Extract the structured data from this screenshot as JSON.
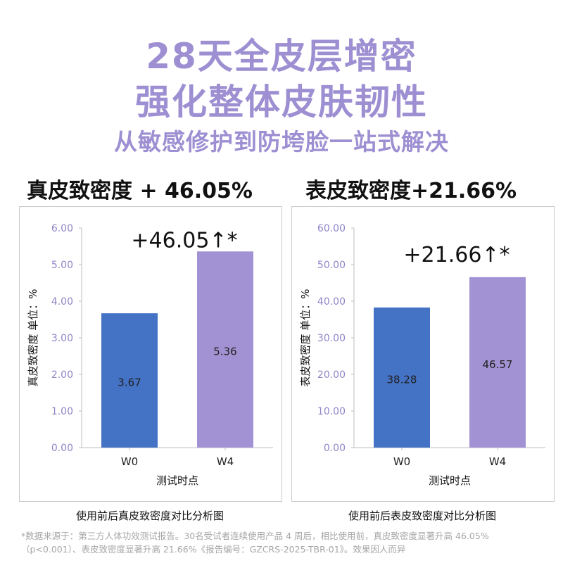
{
  "headline": {
    "line1": "28天全皮层增密",
    "line2": "强化整体皮肤韧性",
    "line3": "从敏感修护到防垮脸一站式解决"
  },
  "colors": {
    "headline": "#9d8fd2",
    "bar_w0": "#4472c4",
    "bar_w4": "#a292d4",
    "axis_tick": "#8e86c8"
  },
  "chart_data": [
    {
      "type": "bar",
      "title": "真皮致密度 + 46.05%",
      "annotation": "+46.05↑*",
      "categories": [
        "W0",
        "W4"
      ],
      "values": [
        3.67,
        5.36
      ],
      "value_labels": [
        "3.67",
        "5.36"
      ],
      "xlabel": "测试时点",
      "ylabel": "真皮致密度 单位：%",
      "ylim": [
        0,
        6
      ],
      "yticks": [
        "0.00",
        "1.00",
        "2.00",
        "3.00",
        "4.00",
        "5.00",
        "6.00"
      ],
      "caption": "使用前后真皮致密度对比分析图",
      "grid": false
    },
    {
      "type": "bar",
      "title": "表皮致密度+21.66%",
      "annotation": "+21.66↑*",
      "categories": [
        "W0",
        "W4"
      ],
      "values": [
        38.28,
        46.57
      ],
      "value_labels": [
        "38.28",
        "46.57"
      ],
      "xlabel": "测试时点",
      "ylabel": "表皮致密度 单位：%",
      "ylim": [
        0,
        60
      ],
      "yticks": [
        "0.00",
        "10.00",
        "20.00",
        "30.00",
        "40.00",
        "50.00",
        "60.00"
      ],
      "caption": "使用前后表皮致密度对比分析图",
      "grid": false
    }
  ],
  "footnote": "*数据来源于：第三方人体功效测试报告。30名受试者连续使用产品 4 周后，相比使用前，真皮致密度显著升高 46.05%（p<0.001）、表皮致密度显著升高 21.66%《报告编号：GZCRS-2025-TBR-01》。效果因人而异"
}
